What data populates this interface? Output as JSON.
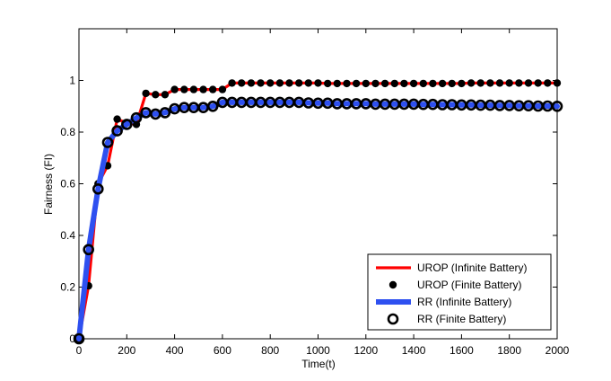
{
  "chart_data": {
    "type": "line",
    "xlabel": "Time(t)",
    "ylabel": "Fairness (FI)",
    "xlim": [
      0,
      2000
    ],
    "ylim": [
      0,
      1.2
    ],
    "x_ticks": [
      0,
      200,
      400,
      600,
      800,
      1000,
      1200,
      1400,
      1600,
      1800,
      2000
    ],
    "x_tick_labels": [
      "0",
      "200",
      "400",
      "600",
      "800",
      "1000",
      "1200",
      "1400",
      "1600",
      "1800",
      "2000"
    ],
    "y_ticks": [
      0,
      0.2,
      0.4,
      0.6,
      0.8,
      1
    ],
    "y_tick_labels": [
      "0",
      "0.2",
      "0.4",
      "0.6",
      "0.8",
      "1"
    ],
    "grid": false,
    "legend_position": "bottom-right",
    "x": [
      0,
      40,
      80,
      120,
      160,
      200,
      240,
      280,
      320,
      360,
      400,
      440,
      480,
      520,
      560,
      600,
      640,
      680,
      720,
      760,
      800,
      840,
      880,
      920,
      960,
      1000,
      1040,
      1080,
      1120,
      1160,
      1200,
      1240,
      1280,
      1320,
      1360,
      1400,
      1440,
      1480,
      1520,
      1560,
      1600,
      1640,
      1680,
      1720,
      1760,
      1800,
      1840,
      1880,
      1920,
      1960,
      2000
    ],
    "series": [
      {
        "name": "UROP (Infinite Battery)",
        "type": "line",
        "color": "#ff0000",
        "values": [
          0,
          0.205,
          0.6,
          0.67,
          0.85,
          0.835,
          0.83,
          0.95,
          0.945,
          0.945,
          0.965,
          0.965,
          0.965,
          0.965,
          0.965,
          0.965,
          0.99,
          0.99,
          0.99,
          0.99,
          0.99,
          0.99,
          0.99,
          0.99,
          0.99,
          0.99,
          0.988,
          0.988,
          0.988,
          0.988,
          0.988,
          0.988,
          0.988,
          0.988,
          0.988,
          0.988,
          0.988,
          0.988,
          0.988,
          0.988,
          0.988,
          0.99,
          0.99,
          0.99,
          0.99,
          0.99,
          0.99,
          0.99,
          0.99,
          0.99,
          0.99
        ]
      },
      {
        "name": "UROP (Finite Battery)",
        "type": "scatter",
        "color": "#000000",
        "filled": true,
        "values": [
          0,
          0.205,
          0.6,
          0.67,
          0.85,
          0.835,
          0.83,
          0.95,
          0.945,
          0.945,
          0.965,
          0.965,
          0.965,
          0.965,
          0.965,
          0.965,
          0.99,
          0.99,
          0.99,
          0.99,
          0.99,
          0.99,
          0.99,
          0.99,
          0.99,
          0.99,
          0.988,
          0.988,
          0.988,
          0.988,
          0.988,
          0.988,
          0.988,
          0.988,
          0.988,
          0.988,
          0.988,
          0.988,
          0.988,
          0.988,
          0.988,
          0.99,
          0.99,
          0.99,
          0.99,
          0.99,
          0.99,
          0.99,
          0.99,
          0.99,
          0.99
        ]
      },
      {
        "name": "RR (Infinite Battery)",
        "type": "line",
        "color": "#2e50f0",
        "values": [
          0,
          0.345,
          0.58,
          0.76,
          0.805,
          0.83,
          0.855,
          0.875,
          0.87,
          0.875,
          0.89,
          0.895,
          0.895,
          0.895,
          0.9,
          0.915,
          0.915,
          0.915,
          0.915,
          0.915,
          0.915,
          0.915,
          0.915,
          0.915,
          0.913,
          0.912,
          0.912,
          0.91,
          0.91,
          0.91,
          0.91,
          0.908,
          0.908,
          0.908,
          0.908,
          0.908,
          0.907,
          0.907,
          0.906,
          0.906,
          0.905,
          0.905,
          0.904,
          0.904,
          0.903,
          0.903,
          0.902,
          0.902,
          0.901,
          0.901,
          0.9
        ]
      },
      {
        "name": "RR (Finite Battery)",
        "type": "scatter",
        "color": "#000000",
        "filled": false,
        "values": [
          0,
          0.345,
          0.58,
          0.76,
          0.805,
          0.83,
          0.855,
          0.875,
          0.87,
          0.875,
          0.89,
          0.895,
          0.895,
          0.895,
          0.9,
          0.915,
          0.915,
          0.915,
          0.915,
          0.915,
          0.915,
          0.915,
          0.915,
          0.915,
          0.913,
          0.912,
          0.912,
          0.91,
          0.91,
          0.91,
          0.91,
          0.908,
          0.908,
          0.908,
          0.908,
          0.908,
          0.907,
          0.907,
          0.906,
          0.906,
          0.905,
          0.905,
          0.904,
          0.904,
          0.903,
          0.903,
          0.902,
          0.902,
          0.901,
          0.901,
          0.9
        ]
      }
    ]
  }
}
